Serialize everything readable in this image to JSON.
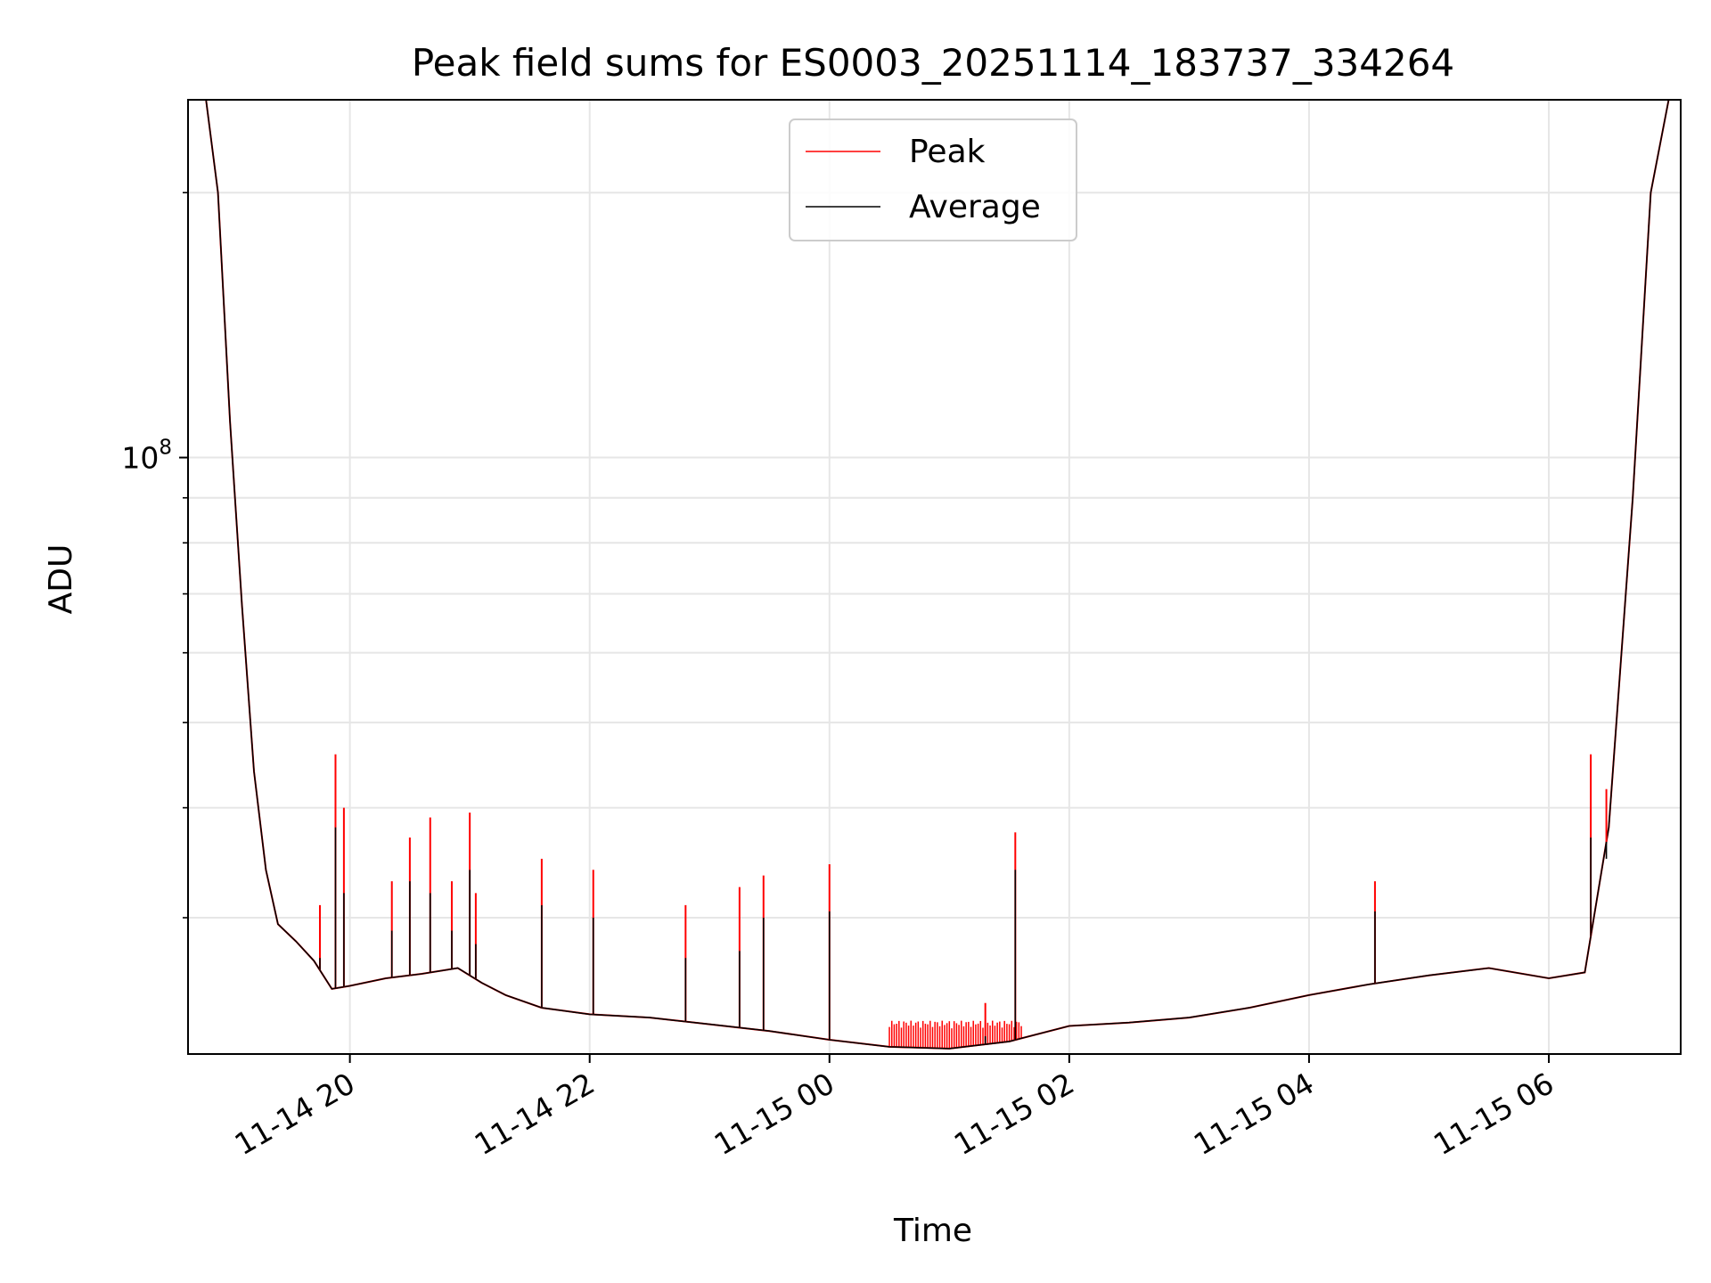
{
  "chart_data": {
    "type": "line",
    "title": "Peak field sums for ES0003_20251114_183737_334264",
    "xlabel": "Time",
    "ylabel": "ADU",
    "yscale": "log",
    "ylim": [
      21000000,
      255000000
    ],
    "xlim_hours": [
      -1.35,
      11.1
    ],
    "x_tick_hours": [
      0,
      2,
      4,
      6,
      8,
      10
    ],
    "x_tick_labels": [
      "11-14 20",
      "11-14 22",
      "11-15 00",
      "11-15 02",
      "11-15 04",
      "11-15 06"
    ],
    "y_major_tick": {
      "value": 100000000,
      "base": "10",
      "exp": "8"
    },
    "y_minor_ticks": [
      30000000,
      40000000,
      50000000,
      60000000,
      70000000,
      80000000,
      90000000,
      200000000
    ],
    "grid": true,
    "legend_position": "top-center",
    "series": [
      {
        "name": "Peak",
        "color": "#ff0000"
      },
      {
        "name": "Average",
        "color": "#000000"
      }
    ],
    "average_curve": [
      {
        "h": -1.35,
        "v": 260000000
      },
      {
        "h": -1.2,
        "v": 255000000
      },
      {
        "h": -1.1,
        "v": 200000000
      },
      {
        "h": -1.0,
        "v": 110000000
      },
      {
        "h": -0.9,
        "v": 68000000
      },
      {
        "h": -0.8,
        "v": 44000000
      },
      {
        "h": -0.7,
        "v": 34000000
      },
      {
        "h": -0.6,
        "v": 29500000
      },
      {
        "h": -0.45,
        "v": 28200000
      },
      {
        "h": -0.3,
        "v": 26800000
      },
      {
        "h": -0.15,
        "v": 24900000
      },
      {
        "h": 0.0,
        "v": 25100000
      },
      {
        "h": 0.3,
        "v": 25600000
      },
      {
        "h": 0.6,
        "v": 25900000
      },
      {
        "h": 0.9,
        "v": 26300000
      },
      {
        "h": 1.1,
        "v": 25300000
      },
      {
        "h": 1.3,
        "v": 24500000
      },
      {
        "h": 1.6,
        "v": 23700000
      },
      {
        "h": 2.0,
        "v": 23300000
      },
      {
        "h": 2.5,
        "v": 23100000
      },
      {
        "h": 3.0,
        "v": 22700000
      },
      {
        "h": 3.5,
        "v": 22300000
      },
      {
        "h": 4.0,
        "v": 21800000
      },
      {
        "h": 4.5,
        "v": 21400000
      },
      {
        "h": 5.0,
        "v": 21300000
      },
      {
        "h": 5.5,
        "v": 21700000
      },
      {
        "h": 6.0,
        "v": 22600000
      },
      {
        "h": 6.5,
        "v": 22800000
      },
      {
        "h": 7.0,
        "v": 23100000
      },
      {
        "h": 7.5,
        "v": 23700000
      },
      {
        "h": 8.0,
        "v": 24500000
      },
      {
        "h": 8.5,
        "v": 25200000
      },
      {
        "h": 9.0,
        "v": 25800000
      },
      {
        "h": 9.5,
        "v": 26300000
      },
      {
        "h": 10.0,
        "v": 25600000
      },
      {
        "h": 10.3,
        "v": 26000000
      },
      {
        "h": 10.5,
        "v": 38000000
      },
      {
        "h": 10.7,
        "v": 90000000
      },
      {
        "h": 10.85,
        "v": 200000000
      },
      {
        "h": 11.0,
        "v": 255000000
      },
      {
        "h": 11.1,
        "v": 265000000
      }
    ],
    "spikes": [
      {
        "h": -0.25,
        "peak": 31000000,
        "avg": 27000000
      },
      {
        "h": -0.12,
        "peak": 46000000,
        "avg": 38000000
      },
      {
        "h": -0.05,
        "peak": 40000000,
        "avg": 32000000
      },
      {
        "h": 0.35,
        "peak": 33000000,
        "avg": 29000000
      },
      {
        "h": 0.5,
        "peak": 37000000,
        "avg": 33000000
      },
      {
        "h": 0.67,
        "peak": 39000000,
        "avg": 32000000
      },
      {
        "h": 0.85,
        "peak": 33000000,
        "avg": 29000000
      },
      {
        "h": 1.0,
        "peak": 39500000,
        "avg": 34000000
      },
      {
        "h": 1.05,
        "peak": 32000000,
        "avg": 28000000
      },
      {
        "h": 1.6,
        "peak": 35000000,
        "avg": 31000000
      },
      {
        "h": 2.03,
        "peak": 34000000,
        "avg": 30000000
      },
      {
        "h": 2.8,
        "peak": 31000000,
        "avg": 27000000
      },
      {
        "h": 3.25,
        "peak": 32500000,
        "avg": 27500000
      },
      {
        "h": 3.45,
        "peak": 33500000,
        "avg": 30000000
      },
      {
        "h": 4.0,
        "peak": 34500000,
        "avg": 30500000
      },
      {
        "h": 5.3,
        "peak": 24000000,
        "avg": 22000000
      },
      {
        "h": 5.55,
        "peak": 37500000,
        "avg": 34000000
      },
      {
        "h": 8.55,
        "peak": 33000000,
        "avg": 30500000
      },
      {
        "h": 10.35,
        "peak": 46000000,
        "avg": 37000000
      },
      {
        "h": 10.48,
        "peak": 42000000,
        "avg": 35000000
      }
    ],
    "noise_band": {
      "from_h": 4.5,
      "to_h": 5.6,
      "peak": 22800000
    }
  }
}
